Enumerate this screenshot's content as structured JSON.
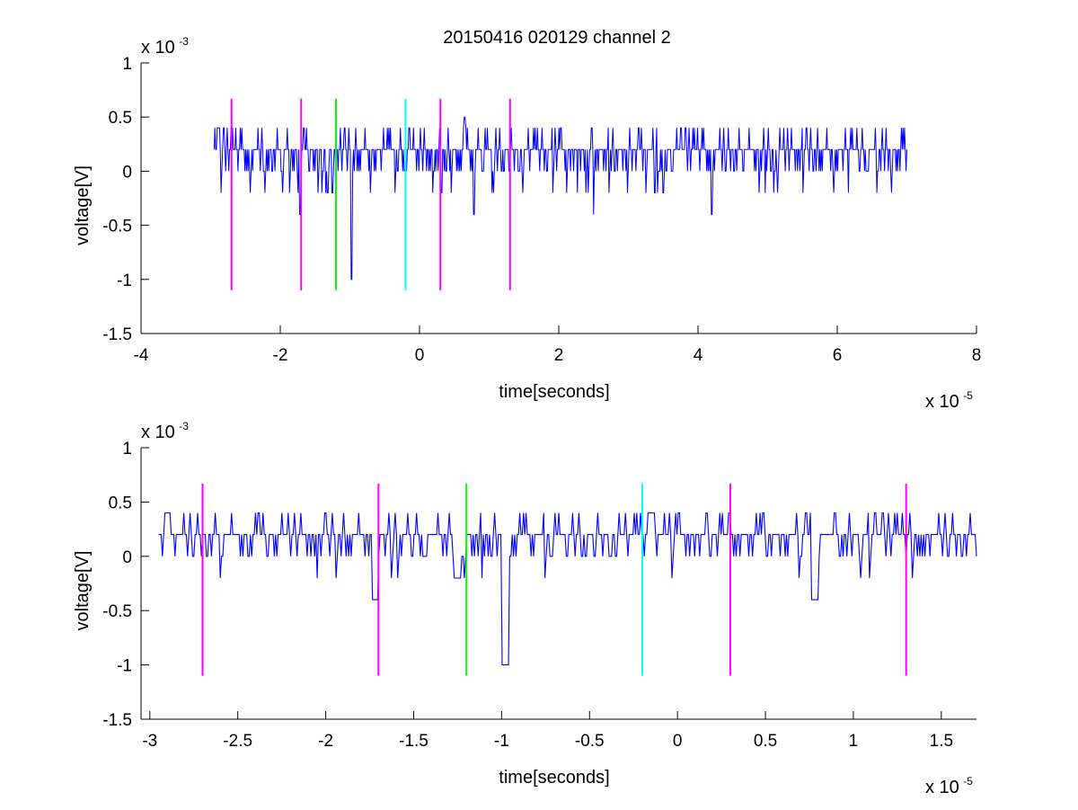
{
  "title": "20150416 020129 channel 2",
  "chart_data": [
    {
      "type": "line",
      "xlabel": "time[seconds]",
      "ylabel": "voltage[V]",
      "x_multiplier": {
        "base": "x 10",
        "exp": "-5"
      },
      "y_multiplier": {
        "base": "x 10",
        "exp": "-3"
      },
      "xlim": [
        -4,
        8
      ],
      "ylim": [
        -1.5,
        1
      ],
      "xticks": [
        -4,
        -2,
        0,
        2,
        4,
        6,
        8
      ],
      "xtick_labels": [
        "-4",
        "-2",
        "0",
        "2",
        "4",
        "6",
        "8"
      ],
      "yticks": [
        -1.5,
        -1,
        -0.5,
        0,
        0.5,
        1
      ],
      "ytick_labels": [
        "-1.5",
        "-1",
        "-0.5",
        "0",
        "0.5",
        "1"
      ],
      "series": [
        {
          "color": "#0000ff",
          "x_range": [
            -2.95,
            7.0
          ],
          "baseline": 0.2
        }
      ],
      "markers": [
        {
          "x": -2.7,
          "ymin": -1.1,
          "ymax": 0.67,
          "color": "#ff00ff"
        },
        {
          "x": -1.7,
          "ymin": -1.1,
          "ymax": 0.67,
          "color": "#ff00ff"
        },
        {
          "x": -1.2,
          "ymin": -1.1,
          "ymax": 0.67,
          "color": "#00ff00"
        },
        {
          "x": -0.2,
          "ymin": -1.1,
          "ymax": 0.67,
          "color": "#00ffff"
        },
        {
          "x": 0.3,
          "ymin": -1.1,
          "ymax": 0.67,
          "color": "#ff00ff"
        },
        {
          "x": 1.3,
          "ymin": -1.1,
          "ymax": 0.67,
          "color": "#ff00ff"
        }
      ]
    },
    {
      "type": "line",
      "xlabel": "time[seconds]",
      "ylabel": "voltage[V]",
      "x_multiplier": {
        "base": "x 10",
        "exp": "-5"
      },
      "y_multiplier": {
        "base": "x 10",
        "exp": "-3"
      },
      "xlim": [
        -3.05,
        1.7
      ],
      "ylim": [
        -1.5,
        1
      ],
      "xticks": [
        -3,
        -2.5,
        -2,
        -1.5,
        -1,
        -0.5,
        0,
        0.5,
        1,
        1.5
      ],
      "xtick_labels": [
        "-3",
        "-2.5",
        "-2",
        "-1.5",
        "-1",
        "-0.5",
        "0",
        "0.5",
        "1",
        "1.5"
      ],
      "yticks": [
        -1.5,
        -1,
        -0.5,
        0,
        0.5,
        1
      ],
      "ytick_labels": [
        "-1.5",
        "-1",
        "-0.5",
        "0",
        "0.5",
        "1"
      ],
      "series": [
        {
          "color": "#0000ff",
          "x_range": [
            -2.95,
            1.7
          ],
          "baseline": 0.2
        }
      ],
      "markers": [
        {
          "x": -2.7,
          "ymin": -1.1,
          "ymax": 0.67,
          "color": "#ff00ff"
        },
        {
          "x": -1.7,
          "ymin": -1.1,
          "ymax": 0.67,
          "color": "#ff00ff"
        },
        {
          "x": -1.2,
          "ymin": -1.1,
          "ymax": 0.67,
          "color": "#00ff00"
        },
        {
          "x": -0.2,
          "ymin": -1.1,
          "ymax": 0.67,
          "color": "#00ffff"
        },
        {
          "x": 0.3,
          "ymin": -1.1,
          "ymax": 0.67,
          "color": "#ff00ff"
        },
        {
          "x": 1.3,
          "ymin": -1.1,
          "ymax": 0.67,
          "color": "#ff00ff"
        }
      ]
    }
  ]
}
